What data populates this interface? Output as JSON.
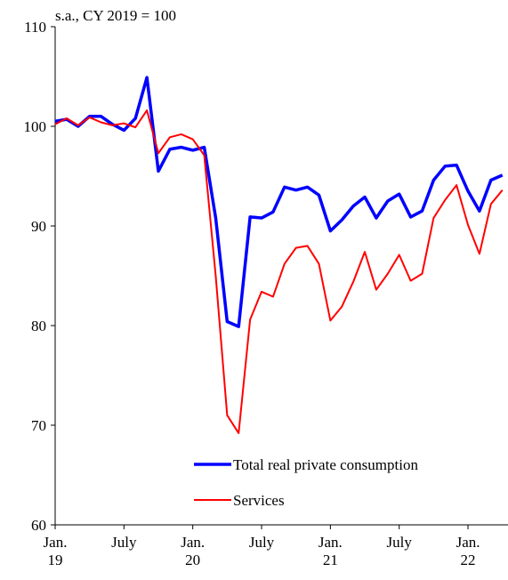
{
  "chart_data": {
    "type": "line",
    "subtitle": "s.a., CY 2019 = 100",
    "categories": [
      "Jan.\n19",
      null,
      null,
      null,
      null,
      null,
      "July",
      null,
      null,
      null,
      null,
      null,
      "Jan.\n20",
      null,
      null,
      null,
      null,
      null,
      "July",
      null,
      null,
      null,
      null,
      null,
      "Jan.\n21",
      null,
      null,
      null,
      null,
      null,
      "July",
      null,
      null,
      null,
      null,
      null,
      "Jan.\n22",
      null,
      null,
      null
    ],
    "series": [
      {
        "name": "Total real private consumption",
        "color": "#0000ff",
        "values": [
          100.5,
          100.7,
          100.0,
          101.0,
          101.0,
          100.2,
          99.6,
          100.8,
          104.9,
          95.5,
          97.7,
          97.9,
          97.6,
          97.9,
          90.8,
          80.4,
          79.9,
          90.9,
          90.8,
          91.4,
          93.9,
          93.6,
          93.9,
          93.1,
          89.5,
          90.6,
          92.0,
          92.9,
          90.8,
          92.5,
          93.2,
          90.9,
          91.5,
          94.6,
          96.0,
          96.1,
          93.5,
          91.5,
          94.6,
          95.1
        ]
      },
      {
        "name": "Services",
        "color": "#ff0000",
        "values": [
          100.2,
          100.8,
          100.1,
          100.9,
          100.4,
          100.1,
          100.3,
          99.9,
          101.6,
          97.3,
          98.9,
          99.2,
          98.7,
          97.1,
          85.0,
          71.0,
          69.2,
          80.6,
          83.4,
          82.9,
          86.2,
          87.8,
          88.0,
          86.2,
          80.5,
          81.9,
          84.4,
          87.4,
          83.6,
          85.2,
          87.1,
          84.5,
          85.2,
          90.8,
          92.6,
          94.1,
          90.1,
          87.2,
          92.2,
          93.6
        ]
      }
    ],
    "ylim": [
      60,
      110
    ],
    "yticks": [
      60,
      70,
      80,
      90,
      100,
      110
    ]
  }
}
